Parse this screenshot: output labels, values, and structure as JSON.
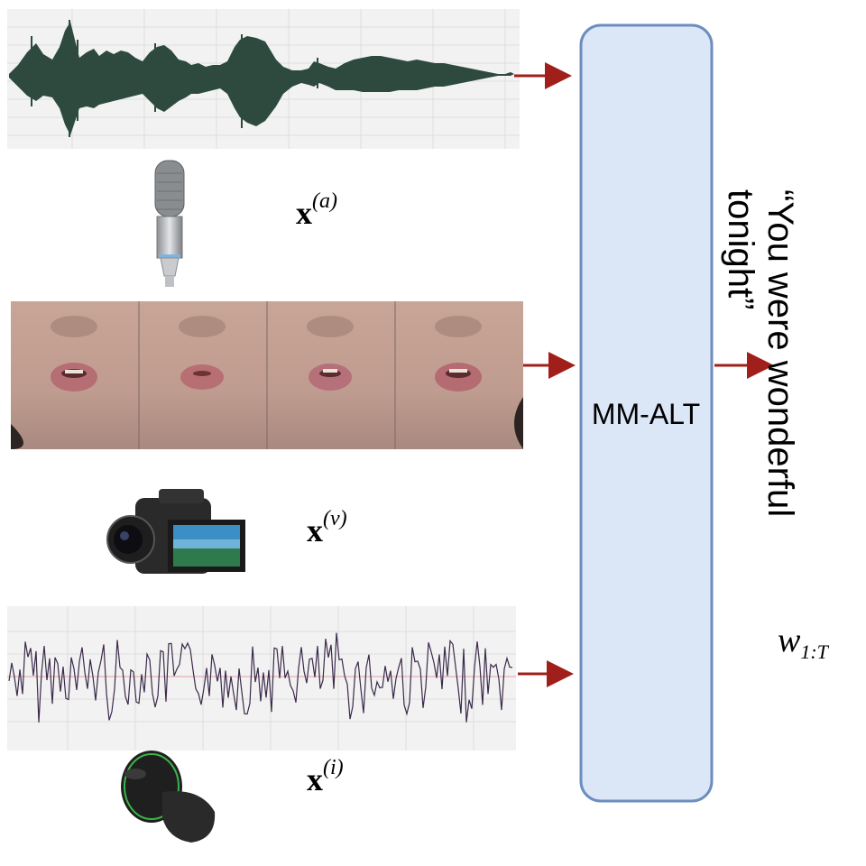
{
  "model": {
    "label": "MM-ALT"
  },
  "modalities": [
    {
      "var": "x",
      "superscript": "(a)"
    },
    {
      "var": "x",
      "superscript": "(v)"
    },
    {
      "var": "x",
      "superscript": "(i)"
    }
  ],
  "output": {
    "line1": "“You were wonderful",
    "line2": "tonight”",
    "symbol": "w",
    "subscript": "1:T"
  },
  "colors": {
    "model_fill": "#dbe6f7",
    "model_stroke": "#6c8ebf",
    "arrow": "#a11f1a",
    "audio_wave": "#2e4a3e",
    "imu_wave": "#3b2a4a"
  },
  "icons": [
    "microphone-icon",
    "camcorder-icon",
    "earbud-icon"
  ]
}
